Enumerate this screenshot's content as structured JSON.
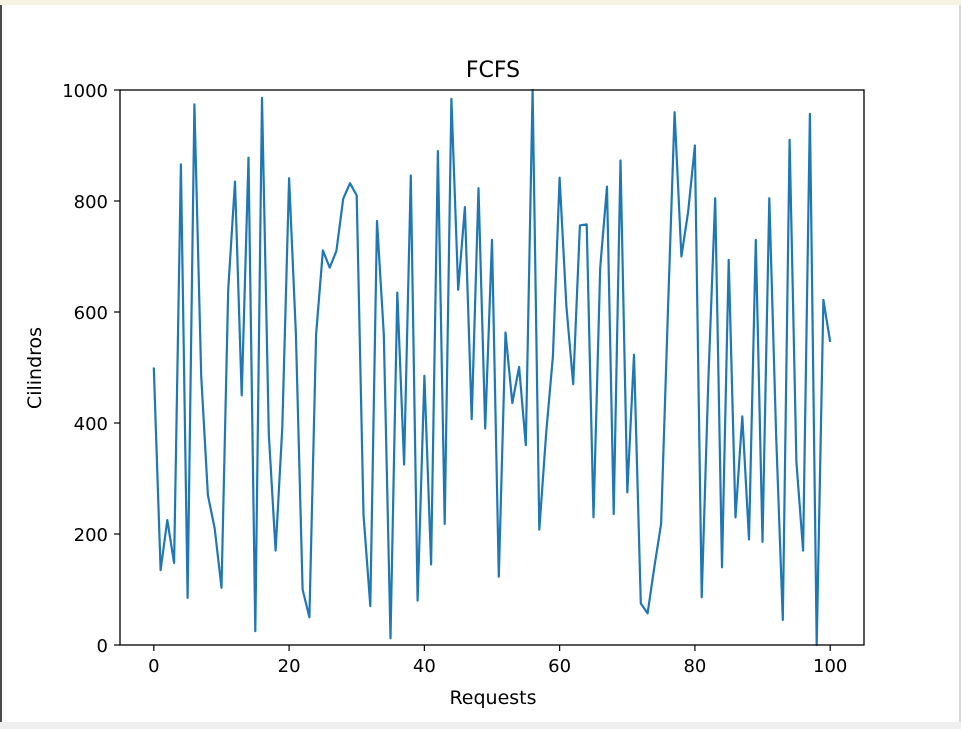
{
  "chart_data": {
    "type": "line",
    "title": "FCFS",
    "xlabel": "Requests",
    "ylabel": "Cilindros",
    "xlim": [
      -5,
      105
    ],
    "ylim": [
      0,
      1000
    ],
    "xticks": [
      0,
      20,
      40,
      60,
      80,
      100
    ],
    "yticks": [
      0,
      200,
      400,
      600,
      800,
      1000
    ],
    "grid": false,
    "line_color": "#1f77b4",
    "x": [
      0,
      1,
      2,
      3,
      4,
      5,
      6,
      7,
      8,
      9,
      10,
      11,
      12,
      13,
      14,
      15,
      16,
      17,
      18,
      19,
      20,
      21,
      22,
      23,
      24,
      25,
      26,
      27,
      28,
      29,
      30,
      31,
      32,
      33,
      34,
      35,
      36,
      37,
      38,
      39,
      40,
      41,
      42,
      43,
      44,
      45,
      46,
      47,
      48,
      49,
      50,
      51,
      52,
      53,
      54,
      55,
      56,
      57,
      58,
      59,
      60,
      61,
      62,
      63,
      64,
      65,
      66,
      67,
      68,
      69,
      70,
      71,
      72,
      73,
      74,
      75,
      76,
      77,
      78,
      79,
      80,
      81,
      82,
      83,
      84,
      85,
      86,
      87,
      88,
      89,
      90,
      91,
      92,
      93,
      94,
      95,
      96,
      97,
      98,
      99,
      100
    ],
    "values": [
      500,
      135,
      225,
      148,
      866,
      85,
      974,
      485,
      270,
      210,
      103,
      640,
      835,
      450,
      878,
      25,
      986,
      380,
      170,
      392,
      841,
      560,
      100,
      50,
      560,
      711,
      680,
      710,
      804,
      832,
      810,
      235,
      70,
      764,
      560,
      12,
      635,
      325,
      846,
      80,
      485,
      145,
      890,
      218,
      984,
      640,
      789,
      407,
      823,
      390,
      730,
      123,
      563,
      436,
      501,
      360,
      1000,
      208,
      380,
      520,
      842,
      610,
      470,
      756,
      758,
      230,
      680,
      826,
      236,
      873,
      275,
      523,
      75,
      57,
      140,
      218,
      600,
      960,
      700,
      780,
      900,
      86,
      480,
      805,
      140,
      694,
      230,
      412,
      190,
      730,
      186,
      805,
      380,
      45,
      910,
      330,
      170,
      957,
      0,
      622,
      546
    ]
  }
}
